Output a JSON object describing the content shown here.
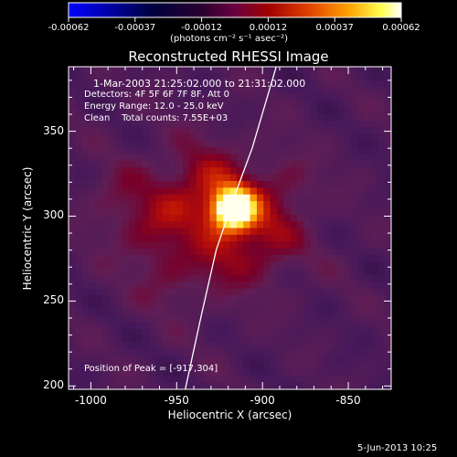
{
  "colorbar": {
    "tick_labels": [
      "-0.00062",
      "-0.00037",
      "-0.00012",
      "0.00012",
      "0.00037",
      "0.00062"
    ],
    "unit_label": "(photons cm⁻² s⁻¹ asec⁻²)",
    "range": [
      -0.00062,
      0.00062
    ]
  },
  "title": "Reconstructed RHESSI Image",
  "annotations": {
    "time_range": "1-Mar-2003 21:25:02.000 to 21:31:02.000",
    "detectors": "Detectors: 4F 5F 6F 7F 8F, Att 0",
    "energy_range": "Energy Range: 12.0 - 25.0 keV",
    "method": "Clean    Total counts: 7.55E+03",
    "peak": "Position of Peak = [-917,304]"
  },
  "footer_timestamp": "5-Jun-2013 10:25",
  "chart_data": {
    "type": "heatmap",
    "title": "Reconstructed RHESSI Image",
    "xlabel": "Heliocentric X (arcsec)",
    "ylabel": "Heliocentric Y (arcsec)",
    "xlim": [
      -1013,
      -825
    ],
    "ylim": [
      198,
      388
    ],
    "x_ticks": [
      -1000,
      -950,
      -900,
      -850
    ],
    "y_ticks": [
      200,
      250,
      300,
      350
    ],
    "x_tick_labels": [
      "-1000",
      "-950",
      "-900",
      "-850"
    ],
    "y_tick_labels": [
      "200",
      "250",
      "300",
      "350"
    ],
    "colormap": "red-temperature",
    "peak": {
      "x": -917,
      "y": 304
    },
    "limb_curve": [
      [
        -945,
        198
      ],
      [
        -936,
        240
      ],
      [
        -927,
        280
      ],
      [
        -917,
        310
      ],
      [
        -906,
        340
      ],
      [
        -892,
        388
      ]
    ],
    "grid": false
  }
}
